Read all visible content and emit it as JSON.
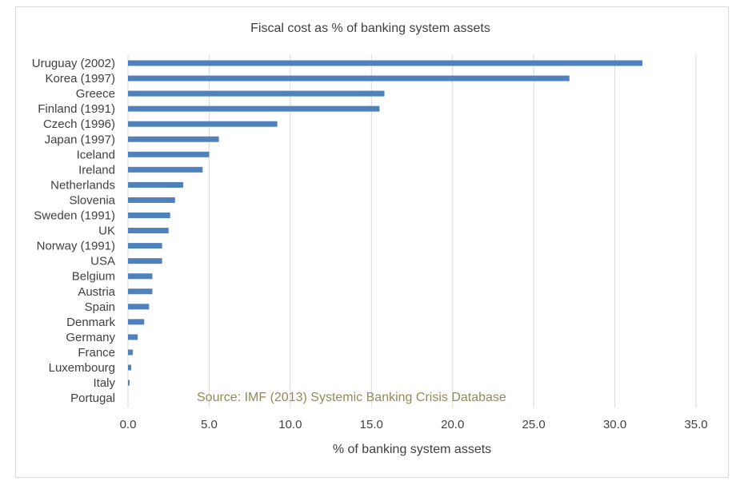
{
  "chart_data": {
    "type": "bar",
    "orientation": "horizontal",
    "title": "Fiscal cost as % of banking system assets",
    "xlabel": "% of banking system assets",
    "ylabel": "",
    "annotation": "Source: IMF (2013) Systemic Banking Crisis Database",
    "categories": [
      "Uruguay (2002)",
      "Korea (1997)",
      "Greece",
      "Finland (1991)",
      "Czech (1996)",
      "Japan (1997)",
      "Iceland",
      "Ireland",
      "Netherlands",
      "Slovenia",
      "Sweden (1991)",
      "UK",
      "Norway (1991)",
      "USA",
      "Belgium",
      "Austria",
      "Spain",
      "Denmark",
      "Germany",
      "France",
      "Luxembourg",
      "Italy",
      "Portugal"
    ],
    "values": [
      31.7,
      27.2,
      15.8,
      15.5,
      9.2,
      5.6,
      5.0,
      4.6,
      3.4,
      2.9,
      2.6,
      2.5,
      2.1,
      2.1,
      1.5,
      1.5,
      1.3,
      1.0,
      0.6,
      0.3,
      0.2,
      0.1,
      0.0
    ],
    "xlim": [
      0,
      35
    ],
    "xticks": [
      "0.0",
      "5.0",
      "10.0",
      "15.0",
      "20.0",
      "25.0",
      "30.0",
      "35.0"
    ],
    "xtick_values": [
      0,
      5,
      10,
      15,
      20,
      25,
      30,
      35
    ],
    "grid": true,
    "legend": "none",
    "bar_color": "#4f81bd",
    "grid_color": "#d9d9d9",
    "text_color": "#404040",
    "annotation_color": "#948a54"
  }
}
